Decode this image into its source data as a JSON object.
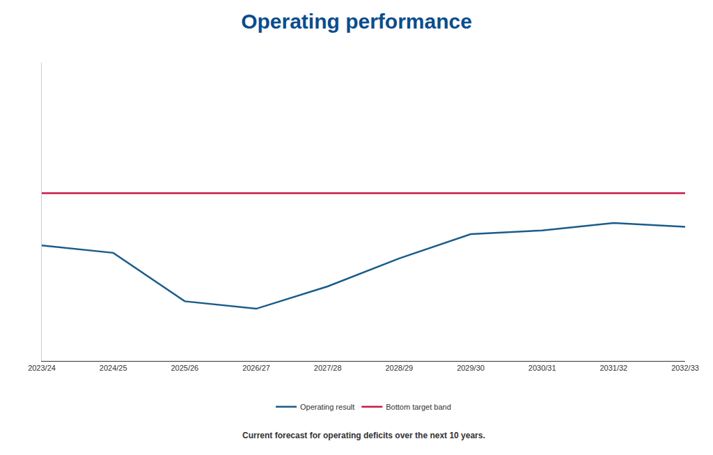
{
  "chart_data": {
    "type": "line",
    "title": "Operating performance",
    "subtitle": "Current forecast for operating deficits over the next 10 years.",
    "categories": [
      "2023/24",
      "2024/25",
      "2025/26",
      "2026/27",
      "2027/28",
      "2028/29",
      "2029/30",
      "2030/31",
      "2031/32",
      "2032/33"
    ],
    "series": [
      {
        "name": "Operating result",
        "color": "#1a5c8a",
        "values": [
          0.62,
          0.58,
          0.32,
          0.28,
          0.4,
          0.55,
          0.68,
          0.7,
          0.74,
          0.72
        ]
      },
      {
        "name": "Bottom target band",
        "color": "#c8184a",
        "values": [
          0.9,
          0.9,
          0.9,
          0.9,
          0.9,
          0.9,
          0.9,
          0.9,
          0.9,
          0.9
        ]
      }
    ],
    "ylim": [
      0.0,
      1.6
    ],
    "grid": false,
    "legend": "bottom",
    "tick_labels": "x"
  }
}
